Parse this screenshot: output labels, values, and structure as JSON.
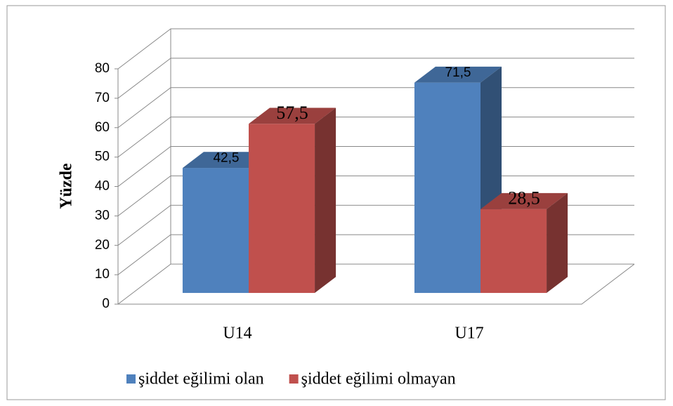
{
  "chart_data": {
    "type": "bar3d",
    "y_label": "Yüzde",
    "categories": [
      "U14",
      "U17"
    ],
    "series": [
      {
        "name": "şiddet eğilimi olan",
        "color": "#4f81bd",
        "values": [
          42.5,
          71.5
        ],
        "value_labels": [
          "42,5",
          "71,5"
        ]
      },
      {
        "name": "şiddet eğilimi olmayan",
        "color": "#c0504d",
        "values": [
          57.5,
          28.5
        ],
        "value_labels": [
          "57,5",
          "28,5"
        ]
      }
    ],
    "ylim": [
      0,
      80
    ],
    "yticks": [
      0,
      10,
      20,
      30,
      40,
      50,
      60,
      70,
      80
    ],
    "grid": true,
    "legend": "bottom"
  }
}
